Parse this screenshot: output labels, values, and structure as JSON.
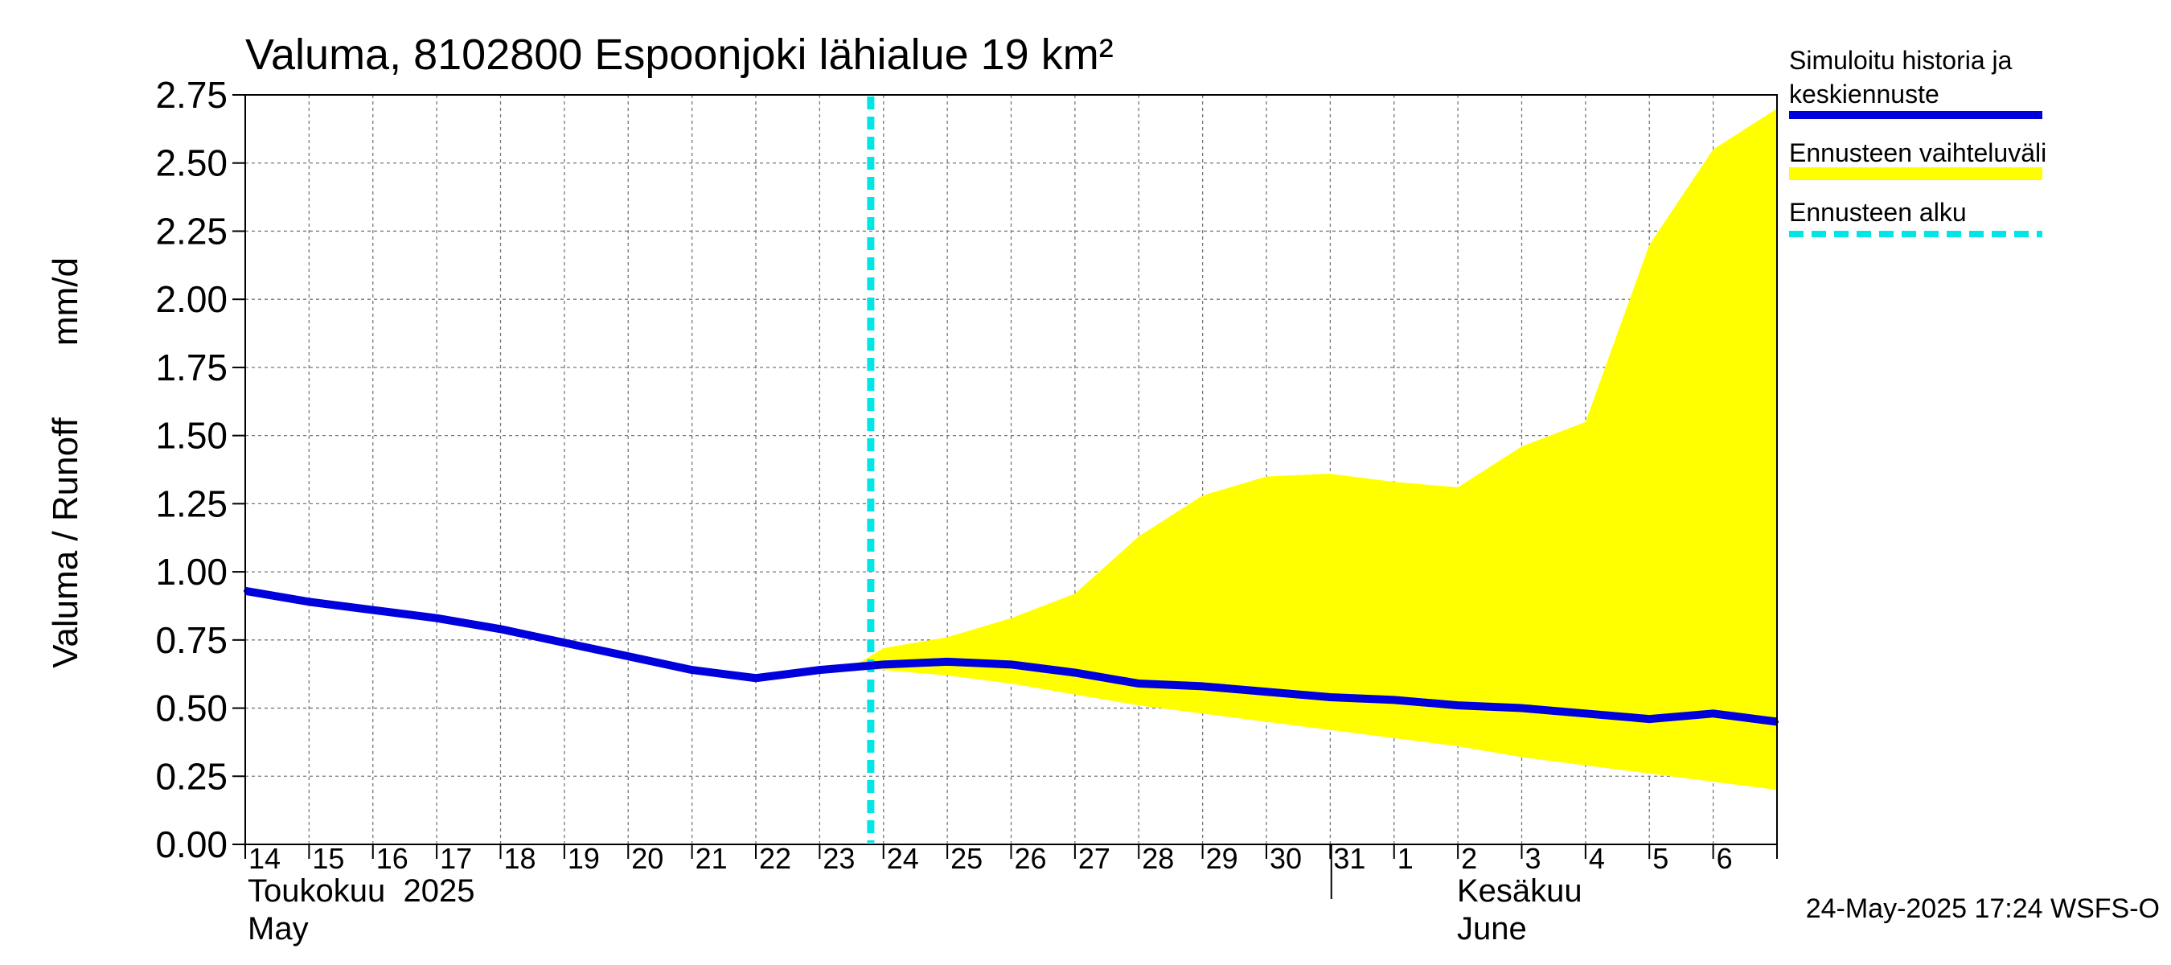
{
  "chart_data": {
    "type": "line",
    "title": "Valuma, 8102800 Espoonjoki lähialue 19 km²",
    "ylabel_left": "Valuma / Runoff",
    "ylabel_right": "mm/d",
    "ylim": [
      0,
      2.75
    ],
    "y_ticks": [
      "0.00",
      "0.25",
      "0.50",
      "0.75",
      "1.00",
      "1.25",
      "1.50",
      "1.75",
      "2.00",
      "2.25",
      "2.50",
      "2.75"
    ],
    "x_tick_labels": [
      "14",
      "15",
      "16",
      "17",
      "18",
      "19",
      "20",
      "21",
      "22",
      "23",
      "24",
      "25",
      "26",
      "27",
      "28",
      "29",
      "30",
      "31",
      "1",
      "2",
      "3",
      "4",
      "5",
      "6"
    ],
    "month_labels": [
      {
        "fi": "Toukokuu  2025",
        "en": "May"
      },
      {
        "fi": "Kesäkuu",
        "en": "June"
      }
    ],
    "forecast_start_day": 23.8,
    "series": [
      {
        "name": "Simuloitu historia ja keskiennuste",
        "color": "#0000dd",
        "x": [
          14,
          15,
          16,
          17,
          18,
          19,
          20,
          21,
          22,
          23,
          24,
          25,
          26,
          27,
          28,
          29,
          30,
          31,
          32,
          33,
          34,
          35,
          36,
          37,
          38
        ],
        "y": [
          0.93,
          0.89,
          0.86,
          0.83,
          0.79,
          0.74,
          0.69,
          0.64,
          0.61,
          0.64,
          0.66,
          0.67,
          0.66,
          0.63,
          0.59,
          0.58,
          0.56,
          0.54,
          0.53,
          0.51,
          0.5,
          0.48,
          0.46,
          0.48,
          0.45
        ]
      }
    ],
    "band": {
      "name": "Ennusteen vaihteluväli",
      "color": "#ffff00",
      "x": [
        23.5,
        24,
        25,
        26,
        27,
        28,
        29,
        30,
        31,
        32,
        33,
        34,
        35,
        36,
        37,
        38
      ],
      "upper": [
        0.65,
        0.72,
        0.76,
        0.83,
        0.92,
        1.13,
        1.28,
        1.35,
        1.36,
        1.33,
        1.31,
        1.46,
        1.55,
        2.2,
        2.55,
        2.7
      ],
      "lower": [
        0.64,
        0.64,
        0.62,
        0.59,
        0.55,
        0.51,
        0.48,
        0.45,
        0.42,
        0.39,
        0.36,
        0.32,
        0.29,
        0.26,
        0.23,
        0.2
      ]
    },
    "legend": [
      {
        "label_lines": [
          "Simuloitu historia ja",
          "keskiennuste"
        ],
        "color": "#0000dd",
        "style": "solid"
      },
      {
        "label_lines": [
          "Ennusteen vaihteluväli"
        ],
        "color": "#ffff00",
        "style": "solid"
      },
      {
        "label_lines": [
          "Ennusteen alku"
        ],
        "color": "#00e5e5",
        "style": "dashed"
      }
    ],
    "legend_placement": "right",
    "grid": true,
    "footer": "24-May-2025 17:24 WSFS-O"
  }
}
